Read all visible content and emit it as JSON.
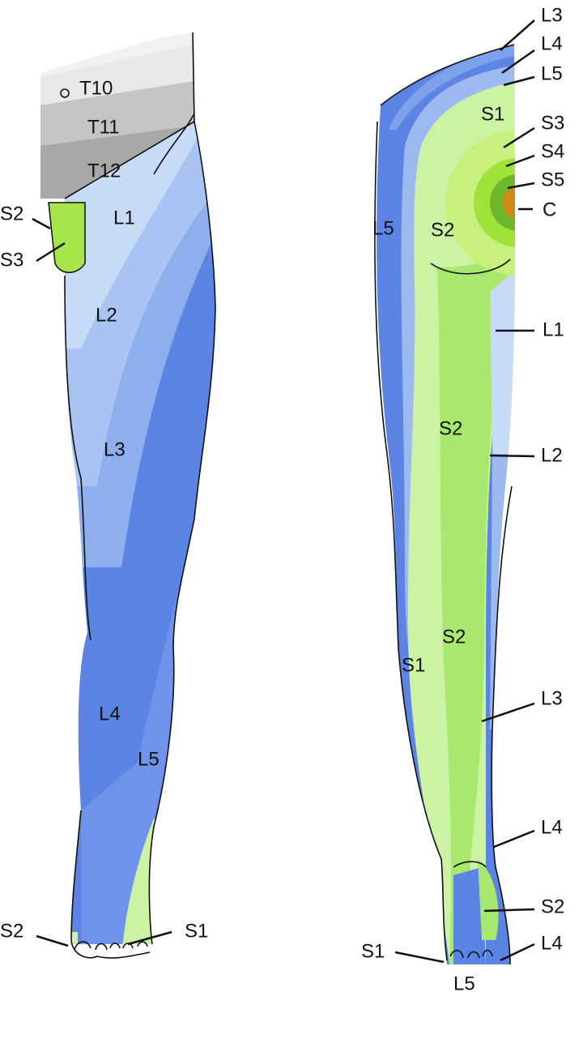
{
  "front": {
    "labels": [
      "T10",
      "T11",
      "T12",
      "L1",
      "S2",
      "S3",
      "L2",
      "L3",
      "L4",
      "L5",
      "S2",
      "S1"
    ]
  },
  "back": {
    "labels": [
      "L3",
      "L4",
      "L5",
      "S1",
      "S3",
      "S4",
      "S5",
      "C",
      "L5",
      "S2",
      "L1",
      "S2",
      "L2",
      "S2",
      "S1",
      "L3",
      "L4",
      "S2",
      "S1",
      "L4",
      "L5"
    ]
  }
}
